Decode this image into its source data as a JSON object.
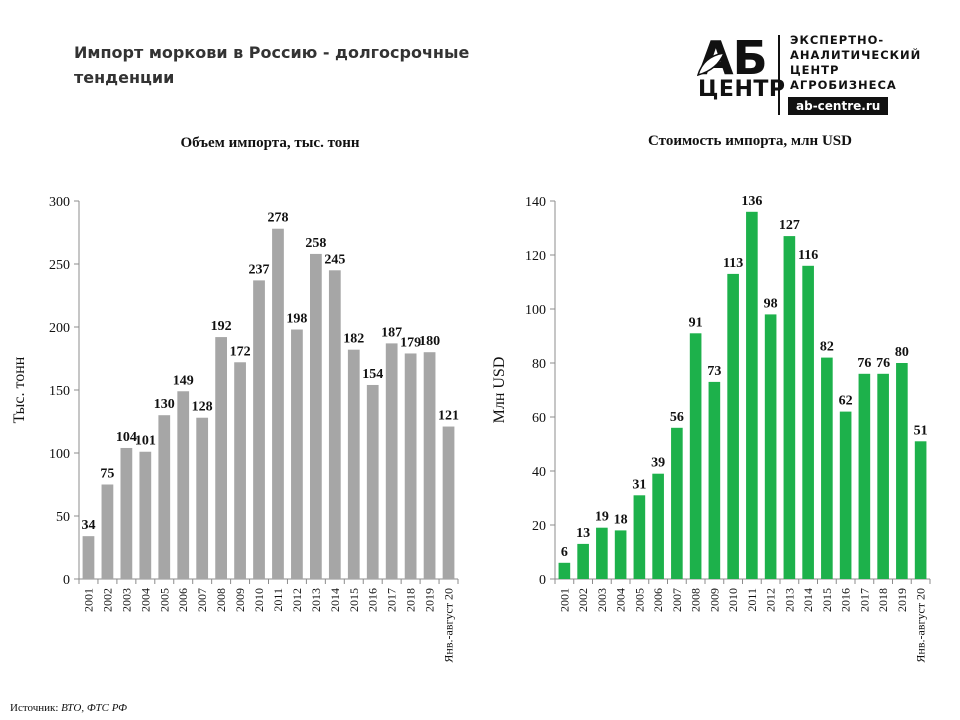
{
  "page": {
    "title": "Импорт моркови в Россию - долгосрочные тенденции",
    "source_label": "Источник:",
    "source_value": "ВТО, ФТС РФ"
  },
  "logo": {
    "ab": "АБ",
    "centr": "ЦЕНТР",
    "lines": [
      "ЭКСПЕРТНО-",
      "АНАЛИТИЧЕСКИЙ",
      "ЦЕНТР",
      "АГРОБИЗНЕСА"
    ],
    "url": "ab-centre.ru"
  },
  "chart_data": [
    {
      "type": "bar",
      "title": "Объем импорта, тыс. тонн",
      "ylabel": "Тыс. тонн",
      "xlabel": "",
      "categories": [
        "2001",
        "2002",
        "2003",
        "2004",
        "2005",
        "2006",
        "2007",
        "2008",
        "2009",
        "2010",
        "2011",
        "2012",
        "2013",
        "2014",
        "2015",
        "2016",
        "2017",
        "2018",
        "2019",
        "Янв.-август 20"
      ],
      "values": [
        34,
        75,
        104,
        101,
        130,
        149,
        128,
        192,
        172,
        237,
        278,
        198,
        258,
        245,
        182,
        154,
        187,
        179,
        180,
        121
      ],
      "ylim": [
        0,
        300
      ],
      "yticks": [
        0,
        50,
        100,
        150,
        200,
        250,
        300
      ],
      "color": "#a6a6a6",
      "grid": false
    },
    {
      "type": "bar",
      "title": "Стоимость импорта, млн USD",
      "ylabel": "Млн USD",
      "xlabel": "",
      "categories": [
        "2001",
        "2002",
        "2003",
        "2004",
        "2005",
        "2006",
        "2007",
        "2008",
        "2009",
        "2010",
        "2011",
        "2012",
        "2013",
        "2014",
        "2015",
        "2016",
        "2017",
        "2018",
        "2019",
        "Янв.-август 20"
      ],
      "values": [
        6,
        13,
        19,
        18,
        31,
        39,
        56,
        91,
        73,
        113,
        136,
        98,
        127,
        116,
        82,
        62,
        76,
        76,
        80,
        51
      ],
      "ylim": [
        0,
        140
      ],
      "yticks": [
        0,
        20,
        40,
        60,
        80,
        100,
        120,
        140
      ],
      "color": "#1db14b",
      "grid": false
    }
  ]
}
